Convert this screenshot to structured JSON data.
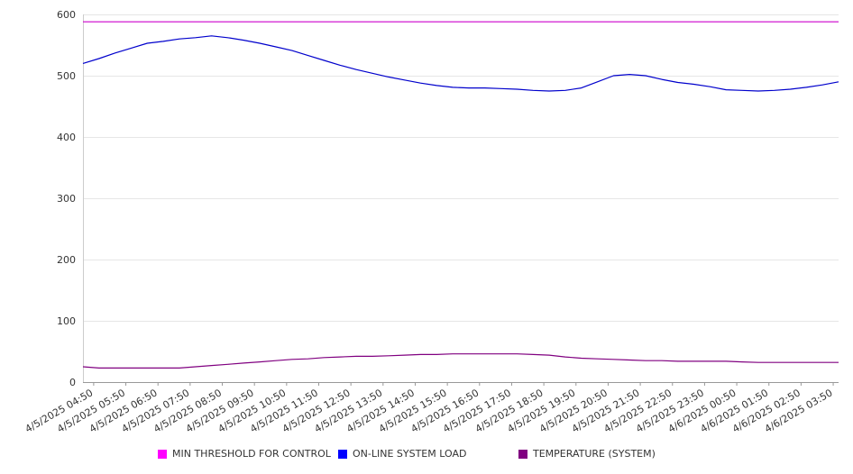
{
  "chart_data": {
    "type": "line",
    "title": "",
    "xlabel": "",
    "ylabel": "",
    "ylim": [
      0,
      600
    ],
    "y_ticks": [
      0,
      100,
      200,
      300,
      400,
      500,
      600
    ],
    "grid": true,
    "legend_position": "bottom",
    "x_tick_labels": [
      "4/5/2025 04:50",
      "4/5/2025 05:50",
      "4/5/2025 06:50",
      "4/5/2025 07:50",
      "4/5/2025 08:50",
      "4/5/2025 09:50",
      "4/5/2025 10:50",
      "4/5/2025 11:50",
      "4/5/2025 12:50",
      "4/5/2025 13:50",
      "4/5/2025 14:50",
      "4/5/2025 15:50",
      "4/5/2025 16:50",
      "4/5/2025 17:50",
      "4/5/2025 18:50",
      "4/5/2025 19:50",
      "4/5/2025 20:50",
      "4/5/2025 21:50",
      "4/5/2025 22:50",
      "4/5/2025 23:50",
      "4/6/2025 00:50",
      "4/6/2025 01:50",
      "4/6/2025 02:50",
      "4/6/2025 03:50"
    ],
    "x": [
      "4/5/2025 04:30",
      "4/5/2025 05:00",
      "4/5/2025 05:30",
      "4/5/2025 06:00",
      "4/5/2025 06:30",
      "4/5/2025 07:00",
      "4/5/2025 07:30",
      "4/5/2025 08:00",
      "4/5/2025 08:30",
      "4/5/2025 09:00",
      "4/5/2025 09:30",
      "4/5/2025 10:00",
      "4/5/2025 10:30",
      "4/5/2025 11:00",
      "4/5/2025 11:30",
      "4/5/2025 12:00",
      "4/5/2025 12:30",
      "4/5/2025 13:00",
      "4/5/2025 13:30",
      "4/5/2025 14:00",
      "4/5/2025 14:30",
      "4/5/2025 15:00",
      "4/5/2025 15:30",
      "4/5/2025 16:00",
      "4/5/2025 16:30",
      "4/5/2025 17:00",
      "4/5/2025 17:30",
      "4/5/2025 18:00",
      "4/5/2025 18:30",
      "4/5/2025 19:00",
      "4/5/2025 19:30",
      "4/5/2025 20:00",
      "4/5/2025 20:30",
      "4/5/2025 21:00",
      "4/5/2025 21:30",
      "4/5/2025 22:00",
      "4/5/2025 22:30",
      "4/5/2025 23:00",
      "4/5/2025 23:30",
      "4/6/2025 00:00",
      "4/6/2025 00:30",
      "4/6/2025 01:00",
      "4/6/2025 01:30",
      "4/6/2025 02:00",
      "4/6/2025 02:30",
      "4/6/2025 03:00",
      "4/6/2025 03:30",
      "4/6/2025 04:00"
    ],
    "series": [
      {
        "name": "MIN THRESHOLD FOR CONTROL",
        "color": "#cc00cc",
        "values": [
          588,
          588,
          588,
          588,
          588,
          588,
          588,
          588,
          588,
          588,
          588,
          588,
          588,
          588,
          588,
          588,
          588,
          588,
          588,
          588,
          588,
          588,
          588,
          588,
          588,
          588,
          588,
          588,
          588,
          588,
          588,
          588,
          588,
          588,
          588,
          588,
          588,
          588,
          588,
          588,
          588,
          588,
          588,
          588,
          588,
          588,
          588,
          588
        ]
      },
      {
        "name": "ON-LINE SYSTEM LOAD",
        "color": "#0000cc",
        "values": [
          520,
          528,
          537,
          545,
          553,
          556,
          560,
          562,
          565,
          562,
          558,
          553,
          547,
          541,
          533,
          525,
          517,
          510,
          504,
          498,
          493,
          488,
          484,
          481,
          480,
          480,
          479,
          478,
          476,
          475,
          476,
          480,
          490,
          500,
          502,
          500,
          494,
          489,
          486,
          482,
          477,
          476,
          475,
          476,
          478,
          481,
          485,
          490
        ]
      },
      {
        "name": "TEMPERATURE (SYSTEM)",
        "color": "#800080",
        "values": [
          25,
          23,
          23,
          23,
          23,
          23,
          23,
          25,
          27,
          29,
          31,
          33,
          35,
          37,
          38,
          40,
          41,
          42,
          42,
          43,
          44,
          45,
          45,
          46,
          46,
          46,
          46,
          46,
          45,
          44,
          41,
          39,
          38,
          37,
          36,
          35,
          35,
          34,
          34,
          34,
          34,
          33,
          32,
          32,
          32,
          32,
          32,
          32
        ]
      }
    ]
  }
}
